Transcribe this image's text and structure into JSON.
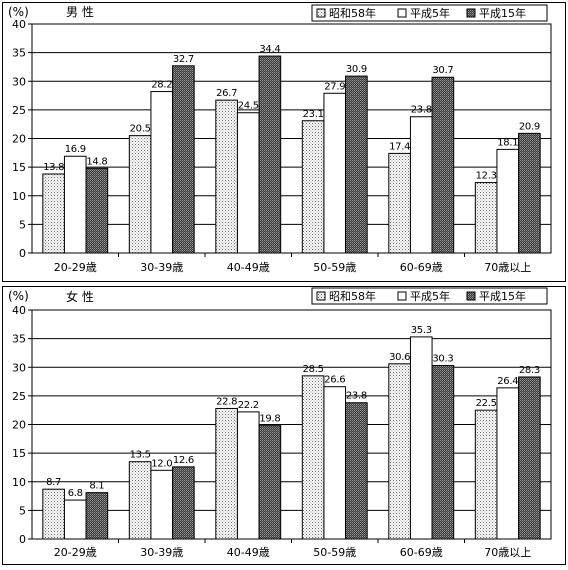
{
  "colors": {
    "background": "#ffffff",
    "axis": "#000000",
    "series_showa58": "#ffffff dotted",
    "series_heisei5": "#ffffff",
    "series_heisei15": "#555555 dotted"
  },
  "chart_data": [
    {
      "type": "bar",
      "title": "男 性",
      "ylabel": "(%)",
      "ylim": [
        0,
        40
      ],
      "yticks": [
        "0",
        "5",
        "10",
        "15",
        "20",
        "25",
        "30",
        "35",
        "40"
      ],
      "grid": true,
      "legend_position": "top-right",
      "categories": [
        "20-29歳",
        "30-39歳",
        "40-49歳",
        "50-59歳",
        "60-69歳",
        "70歳以上"
      ],
      "series": [
        {
          "name": "昭和58年",
          "values": [
            13.8,
            20.5,
            26.7,
            23.1,
            17.4,
            12.3
          ],
          "labels": [
            "13.8",
            "20.5",
            "26.7",
            "23.1",
            "17.4",
            "12.3"
          ]
        },
        {
          "name": "平成5年",
          "values": [
            16.9,
            28.2,
            24.5,
            27.9,
            23.8,
            18.1
          ],
          "labels": [
            "16.9",
            "28.2",
            "24.5",
            "27.9",
            "23.8",
            "18.1"
          ]
        },
        {
          "name": "平成15年",
          "values": [
            14.8,
            32.7,
            34.4,
            30.9,
            30.7,
            20.9
          ],
          "labels": [
            "14.8",
            "32.7",
            "34.4",
            "30.9",
            "30.7",
            "20.9"
          ]
        }
      ]
    },
    {
      "type": "bar",
      "title": "女 性",
      "ylabel": "(%)",
      "ylim": [
        0,
        40
      ],
      "yticks": [
        "0",
        "5",
        "10",
        "15",
        "20",
        "25",
        "30",
        "35",
        "40"
      ],
      "grid": true,
      "legend_position": "top-right",
      "categories": [
        "20-29歳",
        "30-39歳",
        "40-49歳",
        "50-59歳",
        "60-69歳",
        "70歳以上"
      ],
      "series": [
        {
          "name": "昭和58年",
          "values": [
            8.7,
            13.5,
            22.8,
            28.5,
            30.6,
            22.5
          ],
          "labels": [
            "8.7",
            "13.5",
            "22.8",
            "28.5",
            "30.6",
            "22.5"
          ]
        },
        {
          "name": "平成5年",
          "values": [
            6.8,
            12.0,
            22.2,
            26.6,
            35.3,
            26.4
          ],
          "labels": [
            "6.8",
            "12.0",
            "22.2",
            "26.6",
            "35.3",
            "26.4"
          ]
        },
        {
          "name": "平成15年",
          "values": [
            8.1,
            12.6,
            19.8,
            23.8,
            30.3,
            28.3
          ],
          "labels": [
            "8.1",
            "12.6",
            "19.8",
            "23.8",
            "30.3",
            "28.3"
          ]
        }
      ]
    }
  ]
}
